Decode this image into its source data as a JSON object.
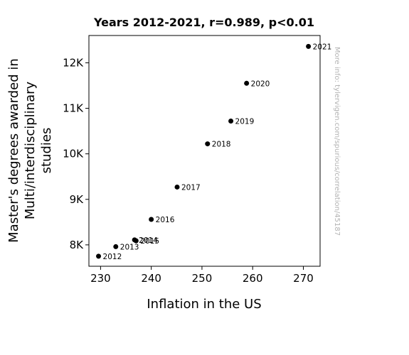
{
  "chart_data": {
    "type": "scatter",
    "title": "Years 2012-2021, r=0.989, p<0.01",
    "xlabel": "Inflation in the US",
    "ylabel_lines": [
      "Master's degrees awarded in",
      "Multi/interdisciplinary",
      "studies"
    ],
    "xlim": [
      227.7,
      273.3
    ],
    "ylim": [
      7530,
      12600
    ],
    "xticks": [
      230,
      240,
      250,
      260,
      270
    ],
    "xtick_labels": [
      "230",
      "240",
      "250",
      "260",
      "270"
    ],
    "yticks": [
      8000,
      9000,
      10000,
      11000,
      12000
    ],
    "ytick_labels": [
      "8K",
      "9K",
      "10K",
      "11K",
      "12K"
    ],
    "grid": false,
    "marker_color": "#000000",
    "points": [
      {
        "label": "2012",
        "x": 229.6,
        "y": 7750
      },
      {
        "label": "2013",
        "x": 233.0,
        "y": 7960
      },
      {
        "label": "2014",
        "x": 236.7,
        "y": 8110
      },
      {
        "label": "2015",
        "x": 237.0,
        "y": 8090
      },
      {
        "label": "2016",
        "x": 240.0,
        "y": 8560
      },
      {
        "label": "2017",
        "x": 245.1,
        "y": 9270
      },
      {
        "label": "2018",
        "x": 251.1,
        "y": 10220
      },
      {
        "label": "2019",
        "x": 255.7,
        "y": 10720
      },
      {
        "label": "2020",
        "x": 258.8,
        "y": 11550
      },
      {
        "label": "2021",
        "x": 271.0,
        "y": 12360
      }
    ]
  },
  "watermark": "More info: tylervigen.com/spurious/correlation/45187"
}
